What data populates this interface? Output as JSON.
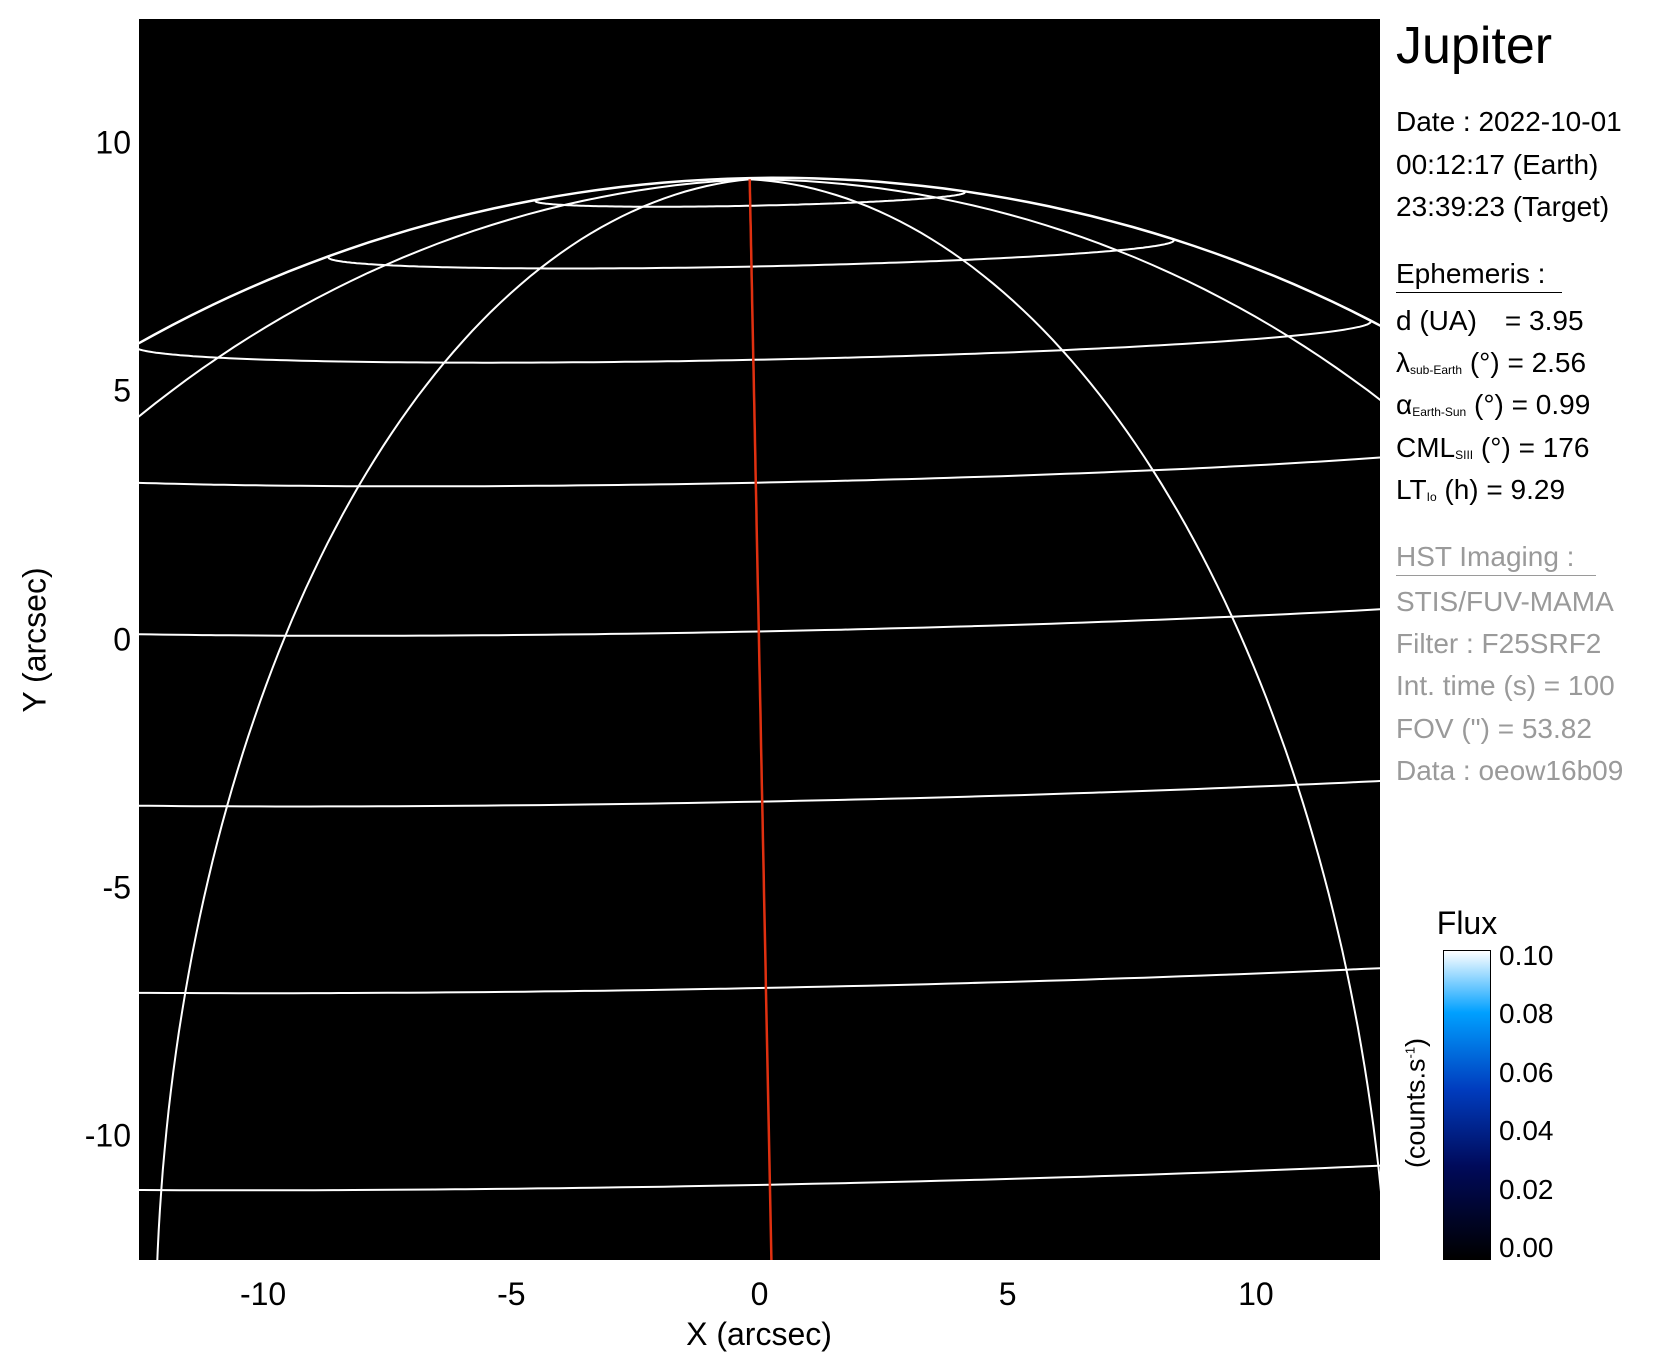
{
  "chart_data": {
    "type": "heatmap",
    "title": "Jupiter",
    "xlabel": "X (arcsec)",
    "ylabel": "Y (arcsec)",
    "xlim": [
      -12.5,
      12.5
    ],
    "ylim": [
      -12.5,
      12.5
    ],
    "xticks": [
      "-10",
      "-5",
      "0",
      "5",
      "10"
    ],
    "yticks": [
      "10",
      "5",
      "0",
      "-5",
      "-10"
    ],
    "xtick_values": [
      -10,
      -5,
      0,
      5,
      10
    ],
    "ytick_values": [
      10,
      5,
      0,
      -5,
      -10
    ],
    "grid": "planetocentric lat/lon grid (white), central meridian (red)",
    "colorbar": {
      "title": "Flux",
      "label": "(counts.s",
      "label_sup": "-1",
      "label_end": ")",
      "range": [
        0.0,
        0.1
      ],
      "ticks": [
        "0.10",
        "0.08",
        "0.06",
        "0.04",
        "0.02",
        "0.00"
      ],
      "tick_values": [
        0.1,
        0.08,
        0.06,
        0.04,
        0.02,
        0.0
      ]
    },
    "colors": {
      "grid": "#ffffff",
      "meridian": "#e03010",
      "background": "#000000"
    }
  },
  "info": {
    "target": "Jupiter",
    "date": "Date : 2022-10-01",
    "time_earth": "00:12:17 (Earth)",
    "time_target": "23:39:23 (Target)",
    "ephemeris_header": "Ephemeris :",
    "distance": {
      "label": "d (UA)",
      "value": "= 3.95"
    },
    "lambda": {
      "symbol": "λ",
      "sub": "sub-Earth",
      "unit": "(°)",
      "value": "= 2.56"
    },
    "alpha": {
      "symbol": "α",
      "sub": "Earth-Sun",
      "unit": "(°)",
      "value": "= 0.99"
    },
    "cml": {
      "symbol": "CML",
      "sub": "SIII",
      "unit": "(°)",
      "value": "= 176"
    },
    "lt": {
      "symbol": "LT",
      "sub": "Io",
      "unit": "(h)",
      "value": "= 9.29"
    },
    "hst_header": "HST Imaging :",
    "instrument": "STIS/FUV-MAMA",
    "filter": "Filter : F25SRF2",
    "int_time": "Int. time (s) = 100",
    "fov": "FOV (\") = 53.82",
    "data_id": "Data : oeow16b09"
  }
}
